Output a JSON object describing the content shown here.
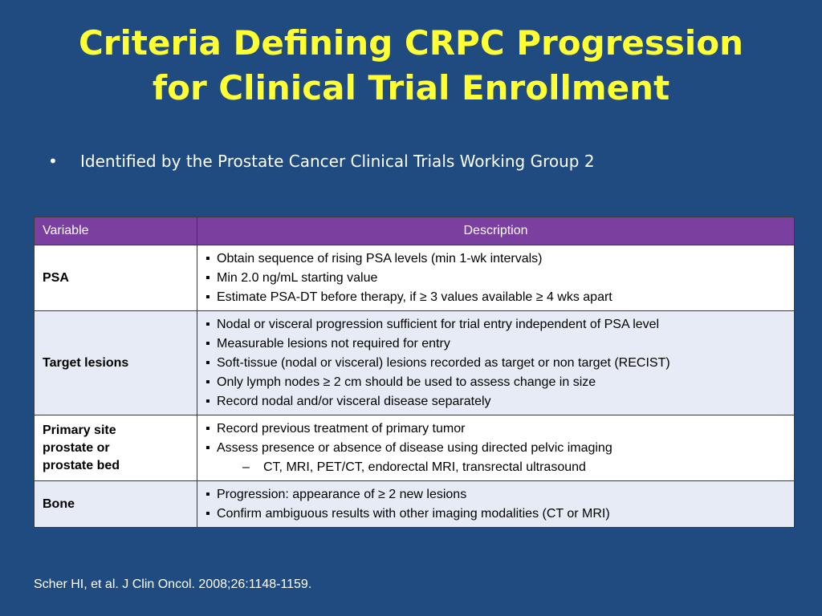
{
  "slide": {
    "title_line1": "Criteria Defining CRPC Progression",
    "title_line2": "for Clinical Trial Enrollment",
    "bullet": "Identified by the Prostate Cancer Clinical Trials Working Group 2",
    "citation": "Scher HI, et al. J Clin Oncol. 2008;26:1148-1159."
  },
  "table": {
    "headers": [
      "Variable",
      "Description"
    ],
    "rows": [
      {
        "variable": "PSA",
        "items": [
          "Obtain sequence of rising PSA levels (min 1-wk intervals)",
          "Min 2.0 ng/mL starting value",
          "Estimate PSA-DT before therapy, if ≥ 3 values available ≥ 4 wks apart"
        ]
      },
      {
        "variable": "Target lesions",
        "items": [
          "Nodal or visceral progression sufficient for trial entry independent of PSA level",
          "Measurable lesions not required for entry",
          "Soft-tissue (nodal or visceral) lesions recorded as target or non target (RECIST)",
          "Only lymph nodes ≥ 2 cm should be used to assess change in size",
          "Record nodal and/or visceral disease separately"
        ]
      },
      {
        "variable_lines": [
          "Primary site",
          "prostate or",
          "prostate bed"
        ],
        "items": [
          "Record previous treatment of primary tumor",
          "Assess presence or absence of disease using directed pelvic imaging"
        ],
        "subitem": "CT, MRI, PET/CT, endorectal MRI, transrectal ultrasound"
      },
      {
        "variable": "Bone",
        "items": [
          "Progression: appearance of ≥ 2 new lesions",
          "Confirm ambiguous results with other imaging modalities (CT or MRI)"
        ]
      }
    ]
  },
  "colors": {
    "background": "#1f4b80",
    "title": "#ffff33",
    "header": "#7b3fa0",
    "row_white": "#ffffff",
    "row_blue": "#e6ebf6"
  }
}
